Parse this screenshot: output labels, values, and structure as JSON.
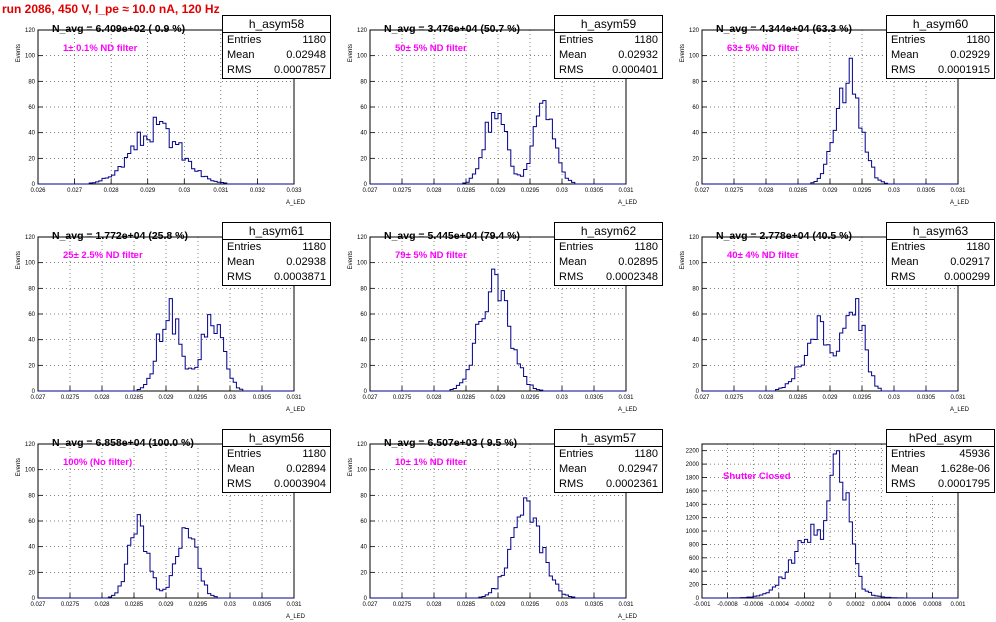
{
  "title": "run 2086,   450 V, I_pe ≈ 10.0 nA, 120 Hz",
  "colors": {
    "title": "#e00000",
    "annotation": "#ff00ff",
    "histogram": "#00008b",
    "grid": "#000000"
  },
  "chart_data": [
    {
      "type": "histogram",
      "name": "h_asym58",
      "n_avg": "N_avg = 6.409e+02 ( 0.9 %)",
      "filter": "1± 0.1% ND filter",
      "stats": {
        "entries_label": "Entries",
        "entries": "1180",
        "mean_label": "Mean",
        "mean": "0.02948",
        "rms_label": "RMS",
        "rms": "0.0007857"
      },
      "xlabel": "A_LED",
      "ylabel": "Events",
      "xlim": [
        0.026,
        0.033
      ],
      "ylim": [
        0,
        120
      ],
      "xticks": [
        0.026,
        0.027,
        0.028,
        0.029,
        0.03,
        0.031,
        0.032,
        0.033
      ],
      "xticklabels": [
        "0.026",
        "0.027",
        "0.028",
        "0.029",
        "0.03",
        "0.031",
        "0.032",
        "0.033"
      ],
      "yticks": [
        0,
        20,
        40,
        60,
        80,
        100,
        120
      ],
      "yticklabels": [
        "0",
        "20",
        "40",
        "60",
        "80",
        "100",
        "120"
      ],
      "peaks": [
        {
          "center": 0.02925,
          "sigma": 0.00065,
          "amp": 38
        }
      ],
      "max": 52
    },
    {
      "type": "histogram",
      "name": "h_asym59",
      "n_avg": "N_avg = 3.476e+04 (50.7 %)",
      "filter": "50± 5% ND filter",
      "stats": {
        "entries_label": "Entries",
        "entries": "1180",
        "mean_label": "Mean",
        "mean": "0.02932",
        "rms_label": "RMS",
        "rms": "0.000401"
      },
      "xlabel": "A_LED",
      "ylabel": "Events",
      "xlim": [
        0.027,
        0.031
      ],
      "ylim": [
        0,
        120
      ],
      "xticks": [
        0.027,
        0.0275,
        0.028,
        0.0285,
        0.029,
        0.0295,
        0.03,
        0.0305,
        0.031
      ],
      "xticklabels": [
        "0.027",
        "0.0275",
        "0.028",
        "0.0285",
        "0.029",
        "0.0295",
        "0.03",
        "0.0305",
        "0.031"
      ],
      "yticks": [
        0,
        20,
        40,
        60,
        80,
        100,
        120
      ],
      "yticklabels": [
        "0",
        "20",
        "40",
        "60",
        "80",
        "100",
        "120"
      ],
      "peaks": [
        {
          "center": 0.02895,
          "sigma": 0.00016,
          "amp": 50
        },
        {
          "center": 0.02972,
          "sigma": 0.00016,
          "amp": 50
        }
      ],
      "max": 65
    },
    {
      "type": "histogram",
      "name": "h_asym60",
      "n_avg": "N_avg = 4.344e+04 (63.3 %)",
      "filter": "63± 5% ND filter",
      "stats": {
        "entries_label": "Entries",
        "entries": "1180",
        "mean_label": "Mean",
        "mean": "0.02929",
        "rms_label": "RMS",
        "rms": "0.0001915"
      },
      "xlabel": "A_LED",
      "ylabel": "Events",
      "xlim": [
        0.027,
        0.031
      ],
      "ylim": [
        0,
        120
      ],
      "xticks": [
        0.027,
        0.0275,
        0.028,
        0.0285,
        0.029,
        0.0295,
        0.03,
        0.0305,
        0.031
      ],
      "xticklabels": [
        "0.027",
        "0.0275",
        "0.028",
        "0.0285",
        "0.029",
        "0.0295",
        "0.03",
        "0.0305",
        "0.031"
      ],
      "yticks": [
        0,
        20,
        40,
        60,
        80,
        100,
        120
      ],
      "yticklabels": [
        "0",
        "20",
        "40",
        "60",
        "80",
        "100",
        "120"
      ],
      "peaks": [
        {
          "center": 0.02929,
          "sigma": 0.00019,
          "amp": 95
        }
      ],
      "max": 98
    },
    {
      "type": "histogram",
      "name": "h_asym61",
      "n_avg": "N_avg = 1.772e+04 (25.8 %)",
      "filter": "25± 2.5% ND filter",
      "stats": {
        "entries_label": "Entries",
        "entries": "1180",
        "mean_label": "Mean",
        "mean": "0.02938",
        "rms_label": "RMS",
        "rms": "0.0003871"
      },
      "xlabel": "A_LED",
      "ylabel": "Events",
      "xlim": [
        0.027,
        0.031
      ],
      "ylim": [
        0,
        120
      ],
      "xticks": [
        0.027,
        0.0275,
        0.028,
        0.0285,
        0.029,
        0.0295,
        0.03,
        0.0305,
        0.031
      ],
      "xticklabels": [
        "0.027",
        "0.0275",
        "0.028",
        "0.0285",
        "0.029",
        "0.0295",
        "0.03",
        "0.0305",
        "0.031"
      ],
      "yticks": [
        0,
        20,
        40,
        60,
        80,
        100,
        120
      ],
      "yticklabels": [
        "0",
        "20",
        "40",
        "60",
        "80",
        "100",
        "120"
      ],
      "peaks": [
        {
          "center": 0.02905,
          "sigma": 0.00017,
          "amp": 56
        },
        {
          "center": 0.02972,
          "sigma": 0.00017,
          "amp": 50
        }
      ],
      "max": 72
    },
    {
      "type": "histogram",
      "name": "h_asym62",
      "n_avg": "N_avg = 5.445e+04 (79.4 %)",
      "filter": "79± 5% ND filter",
      "stats": {
        "entries_label": "Entries",
        "entries": "1180",
        "mean_label": "Mean",
        "mean": "0.02895",
        "rms_label": "RMS",
        "rms": "0.0002348"
      },
      "xlabel": "A_LED",
      "ylabel": "Events",
      "xlim": [
        0.027,
        0.031
      ],
      "ylim": [
        0,
        120
      ],
      "xticks": [
        0.027,
        0.0275,
        0.028,
        0.0285,
        0.029,
        0.0295,
        0.03,
        0.0305,
        0.031
      ],
      "xticklabels": [
        "0.027",
        "0.0275",
        "0.028",
        "0.0285",
        "0.029",
        "0.0295",
        "0.03",
        "0.0305",
        "0.031"
      ],
      "yticks": [
        0,
        20,
        40,
        60,
        80,
        100,
        120
      ],
      "yticklabels": [
        "0",
        "20",
        "40",
        "60",
        "80",
        "100",
        "120"
      ],
      "peaks": [
        {
          "center": 0.02895,
          "sigma": 0.00023,
          "amp": 82
        }
      ],
      "max": 95
    },
    {
      "type": "histogram",
      "name": "h_asym63",
      "n_avg": "N_avg = 2.778e+04 (40.5 %)",
      "filter": "40± 4% ND filter",
      "stats": {
        "entries_label": "Entries",
        "entries": "1180",
        "mean_label": "Mean",
        "mean": "0.02917",
        "rms_label": "RMS",
        "rms": "0.000299"
      },
      "xlabel": "A_LED",
      "ylabel": "Events",
      "xlim": [
        0.027,
        0.031
      ],
      "ylim": [
        0,
        120
      ],
      "xticks": [
        0.027,
        0.0275,
        0.028,
        0.0285,
        0.029,
        0.0295,
        0.03,
        0.0305,
        0.031
      ],
      "xticklabels": [
        "0.027",
        "0.0275",
        "0.028",
        "0.0285",
        "0.029",
        "0.0295",
        "0.03",
        "0.0305",
        "0.031"
      ],
      "yticks": [
        0,
        20,
        40,
        60,
        80,
        100,
        120
      ],
      "yticklabels": [
        "0",
        "20",
        "40",
        "60",
        "80",
        "100",
        "120"
      ],
      "peaks": [
        {
          "center": 0.02885,
          "sigma": 0.00025,
          "amp": 40
        },
        {
          "center": 0.0294,
          "sigma": 0.00014,
          "amp": 55
        }
      ],
      "max": 72
    },
    {
      "type": "histogram",
      "name": "h_asym56",
      "n_avg": "N_avg = 6.858e+04 (100.0 %)",
      "filter": "100% (No filter)",
      "stats": {
        "entries_label": "Entries",
        "entries": "1180",
        "mean_label": "Mean",
        "mean": "0.02894",
        "rms_label": "RMS",
        "rms": "0.0003904"
      },
      "xlabel": "A_LED",
      "ylabel": "Events",
      "xlim": [
        0.027,
        0.031
      ],
      "ylim": [
        0,
        120
      ],
      "xticks": [
        0.027,
        0.0275,
        0.028,
        0.0285,
        0.029,
        0.0295,
        0.03,
        0.0305,
        0.031
      ],
      "xticklabels": [
        "0.027",
        "0.0275",
        "0.028",
        "0.0285",
        "0.029",
        "0.0295",
        "0.03",
        "0.0305",
        "0.031"
      ],
      "yticks": [
        0,
        20,
        40,
        60,
        80,
        100,
        120
      ],
      "yticklabels": [
        "0",
        "20",
        "40",
        "60",
        "80",
        "100",
        "120"
      ],
      "peaks": [
        {
          "center": 0.02857,
          "sigma": 0.00015,
          "amp": 55
        },
        {
          "center": 0.02932,
          "sigma": 0.00016,
          "amp": 52
        }
      ],
      "max": 65
    },
    {
      "type": "histogram",
      "name": "h_asym57",
      "n_avg": "N_avg = 6.507e+03 ( 9.5 %)",
      "filter": "10± 1% ND filter",
      "stats": {
        "entries_label": "Entries",
        "entries": "1180",
        "mean_label": "Mean",
        "mean": "0.02947",
        "rms_label": "RMS",
        "rms": "0.0002361"
      },
      "xlabel": "A_LED",
      "ylabel": "Events",
      "xlim": [
        0.027,
        0.031
      ],
      "ylim": [
        0,
        120
      ],
      "xticks": [
        0.027,
        0.0275,
        0.028,
        0.0285,
        0.029,
        0.0295,
        0.03,
        0.0305,
        0.031
      ],
      "xticklabels": [
        "0.027",
        "0.0275",
        "0.028",
        "0.0285",
        "0.029",
        "0.0295",
        "0.03",
        "0.0305",
        "0.031"
      ],
      "yticks": [
        0,
        20,
        40,
        60,
        80,
        100,
        120
      ],
      "yticklabels": [
        "0",
        "20",
        "40",
        "60",
        "80",
        "100",
        "120"
      ],
      "peaks": [
        {
          "center": 0.02945,
          "sigma": 0.00024,
          "amp": 72
        }
      ],
      "max": 78
    },
    {
      "type": "histogram",
      "name": "hPed_asym",
      "n_avg": "",
      "filter": "Shutter Closed",
      "stats": {
        "entries_label": "Entries",
        "entries": "45936",
        "mean_label": "Mean",
        "mean": "1.628e-06",
        "rms_label": "RMS",
        "rms": "0.0001795"
      },
      "xlabel": "",
      "ylabel": "",
      "xlim": [
        -0.001,
        0.001
      ],
      "ylim": [
        0,
        2300
      ],
      "xticks": [
        -0.001,
        -0.0008,
        -0.0006,
        -0.0004,
        -0.0002,
        0,
        0.0002,
        0.0004,
        0.0006,
        0.0008,
        0.001
      ],
      "xticklabels": [
        "-0.001",
        "-0.0008",
        "-0.0006",
        "-0.0004",
        "-0.0002",
        "0",
        "0.0002",
        "0.0004",
        "0.0006",
        "0.0008",
        "0.001"
      ],
      "yticks": [
        0,
        200,
        400,
        600,
        800,
        1000,
        1200,
        1400,
        1600,
        1800,
        2000,
        2200
      ],
      "yticklabels": [
        "0",
        "200",
        "400",
        "600",
        "800",
        "1000",
        "1200",
        "1400",
        "1600",
        "1800",
        "2000",
        "2200"
      ],
      "peaks": [
        {
          "center": 8e-05,
          "sigma": 7e-05,
          "amp": 1400
        },
        {
          "center": -0.0001,
          "sigma": 0.00018,
          "amp": 1050
        }
      ],
      "max": 2200
    }
  ]
}
